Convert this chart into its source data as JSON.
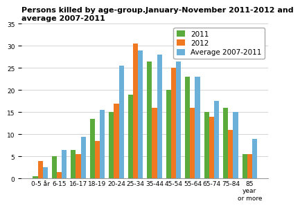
{
  "title": "Persons killed by age-group.January-November 2011-2012 and\naverage 2007-2011",
  "categories": [
    "0-5 år",
    "6-15",
    "16-17",
    "18-19",
    "20-24",
    "25-34",
    "35-44",
    "45-54",
    "55-64",
    "65-74",
    "75-84",
    "85\nyear\nor more"
  ],
  "series": {
    "2011": [
      0.5,
      5.0,
      6.5,
      13.5,
      15.0,
      19.0,
      26.5,
      20.0,
      23.0,
      15.0,
      16.0,
      5.5
    ],
    "2012": [
      4.0,
      1.5,
      5.5,
      8.5,
      17.0,
      30.5,
      16.0,
      25.0,
      16.0,
      14.0,
      11.0,
      5.5
    ],
    "Average 2007-2011": [
      2.5,
      6.5,
      9.5,
      15.5,
      25.5,
      29.0,
      28.0,
      26.5,
      23.0,
      17.5,
      15.0,
      9.0
    ]
  },
  "colors": {
    "2011": "#5aaa3c",
    "2012": "#f07820",
    "Average 2007-2011": "#6ab0d8"
  },
  "ylim": [
    0,
    35
  ],
  "yticks": [
    0,
    5,
    10,
    15,
    20,
    25,
    30,
    35
  ],
  "bar_width": 0.26,
  "title_fontsize": 8.0,
  "tick_fontsize": 6.5,
  "legend_fontsize": 7.5
}
